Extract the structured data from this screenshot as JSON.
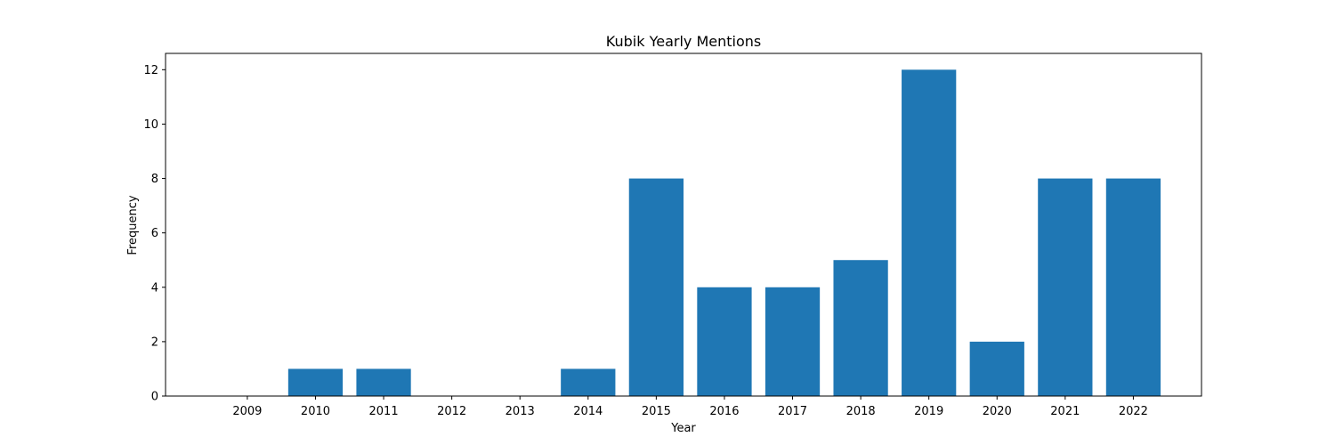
{
  "chart_data": {
    "type": "bar",
    "title": "Kubik Yearly Mentions",
    "xlabel": "Year",
    "ylabel": "Frequency",
    "categories": [
      "2009",
      "2010",
      "2011",
      "2012",
      "2013",
      "2014",
      "2015",
      "2016",
      "2017",
      "2018",
      "2019",
      "2020",
      "2021",
      "2022"
    ],
    "values": [
      0,
      1,
      1,
      0,
      0,
      1,
      8,
      4,
      4,
      5,
      12,
      2,
      8,
      8
    ],
    "ylim": [
      0,
      12.6
    ],
    "yticks": [
      0,
      2,
      4,
      6,
      8,
      10,
      12
    ],
    "bar_color": "#1f77b4",
    "grid": false,
    "legend": "none"
  }
}
